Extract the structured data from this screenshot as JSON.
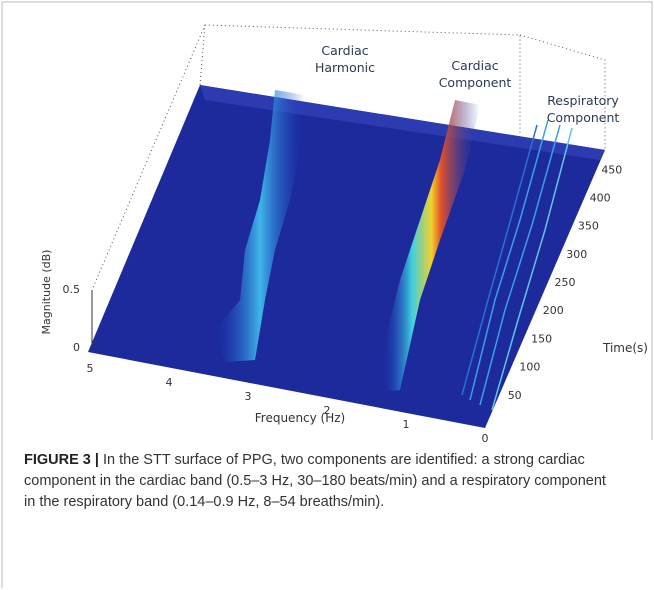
{
  "figure": {
    "annotations": [
      {
        "lines": [
          "Cardiac",
          "Harmonic"
        ]
      },
      {
        "lines": [
          "Cardiac",
          "Component"
        ]
      },
      {
        "lines": [
          "Respiratory",
          "Component"
        ]
      }
    ],
    "y_axis_label": "Magnitude (dB)",
    "y_ticks": [
      0,
      0.5
    ],
    "x_axis_label": "Frequency (Hz)",
    "x_ticks": [
      5,
      4,
      3,
      2,
      1,
      0
    ],
    "z_axis_label": "Time(s)",
    "z_ticks": [
      50,
      100,
      150,
      200,
      250,
      300,
      350,
      400,
      450
    ]
  },
  "caption": {
    "label": "FIGURE 3 |",
    "text": "In the STT surface of PPG, two components are identified: a strong cardiac component in the cardiac band (0.5–3 Hz, 30–180 beats/min) and a respiratory component in the respiratory band (0.14–0.9 Hz, 8–54 breaths/min)."
  }
}
